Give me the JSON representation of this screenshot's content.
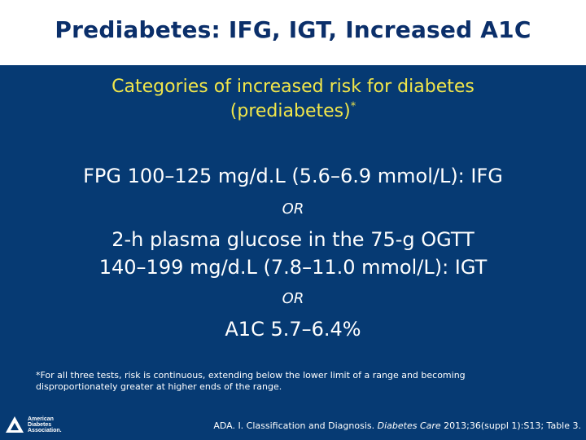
{
  "slide": {
    "title": "Prediabetes: IFG, IGT, Increased A1C",
    "subtitle_line1": "Categories of increased risk for diabetes",
    "subtitle_line2": "(prediabetes)",
    "subtitle_marker": "*",
    "criteria": {
      "fpg": "FPG 100–125 mg/d.L (5.6–6.9 mmol/L): IFG",
      "or1": "OR",
      "ogtt_line1": "2-h plasma glucose in the 75-g OGTT",
      "ogtt_line2": "140–199 mg/d.L (7.8–11.0 mmol/L): IGT",
      "or2": "OR",
      "a1c": "A1C 5.7–6.4%"
    },
    "footnote": "*For all three tests, risk is continuous, extending below the lower limit of a range and becoming disproportionately greater at higher ends of the range.",
    "logo": {
      "line1": "American",
      "line2": "Diabetes",
      "line3": "Association."
    },
    "citation": {
      "prefix": "ADA. I. Classification and Diagnosis. ",
      "journal": "Diabetes Care",
      "suffix": " 2013;36(suppl 1):S13; Table 3."
    }
  },
  "colors": {
    "title": "#0b2f6a",
    "background": "#063a73",
    "subtitle": "#f1e64a",
    "text": "#ffffff"
  }
}
